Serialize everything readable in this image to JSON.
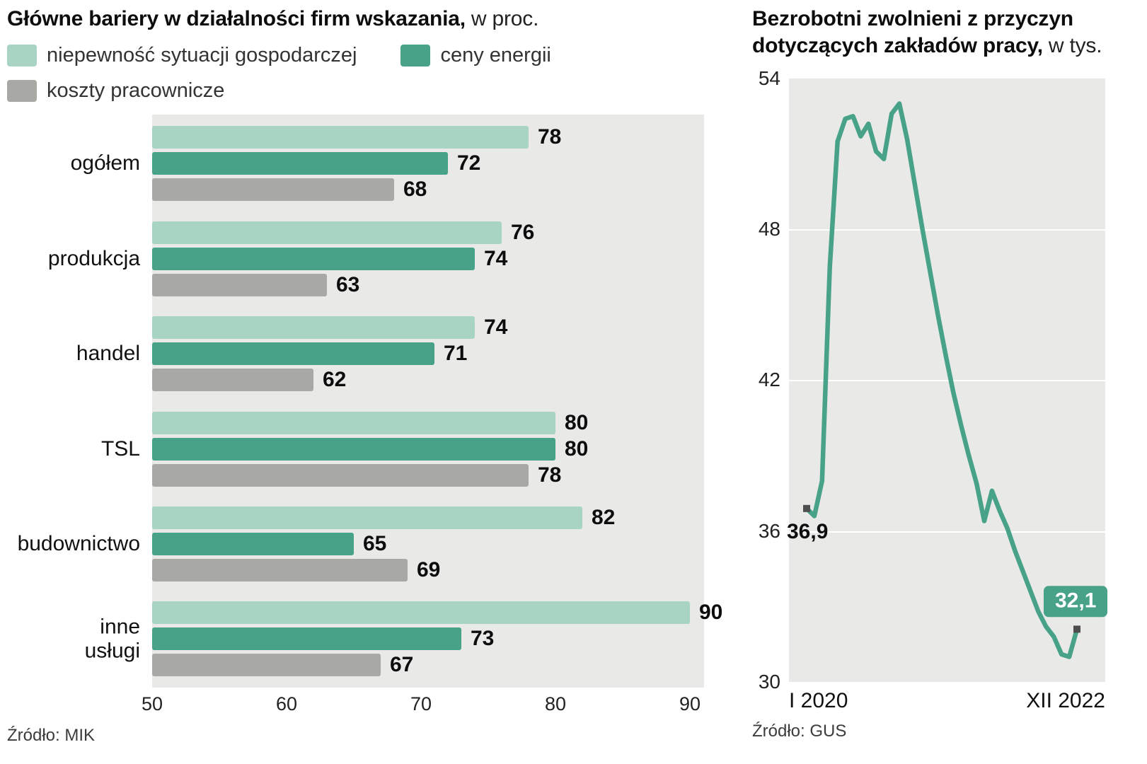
{
  "left_chart": {
    "title_bold": "Główne bariery w działalności firm wskazania,",
    "title_light": "w proc.",
    "source": "Źródło: MIK"
  },
  "right_chart": {
    "title_bold": "Bezrobotni zwolnieni z przyczyn dotyczących zakładów pracy,",
    "title_light": "w tys.",
    "x_label_left": "I 2020",
    "x_label_right": "XII 2022",
    "start_label": "36,9",
    "end_label": "32,1",
    "source": "Źródło: GUS"
  },
  "colors": {
    "light_teal": "#a7d4c3",
    "dark_teal": "#47a287",
    "gray_bar": "#a8a8a4",
    "plot_background": "#e9e9e7",
    "marker": "#4e4e4e"
  },
  "chart_data": [
    {
      "type": "bar",
      "orientation": "horizontal",
      "title": "Główne bariery w działalności firm wskazania, w proc.",
      "categories": [
        "ogółem",
        "produkcja",
        "handel",
        "TSL",
        "budownictwo",
        "inne\nusługi"
      ],
      "series": [
        {
          "name": "niepewność sytuacji gospodarczej",
          "color": "#a7d4c3",
          "values": [
            78,
            76,
            74,
            80,
            82,
            90
          ]
        },
        {
          "name": "ceny energii",
          "color": "#47a287",
          "values": [
            72,
            74,
            71,
            80,
            65,
            73
          ]
        },
        {
          "name": "koszty pracownicze",
          "color": "#a8a8a4",
          "values": [
            68,
            63,
            62,
            78,
            69,
            67
          ]
        }
      ],
      "xlim": [
        50,
        90
      ],
      "x_ticks": [
        50,
        60,
        70,
        80,
        90
      ],
      "plot_background": "#e9e9e7",
      "legend_position": "top",
      "grid": false,
      "source": "Źródło: MIK"
    },
    {
      "type": "line",
      "title": "Bezrobotni zwolnieni z przyczyn dotyczących zakładów pracy, w tys.",
      "color": "#47a287",
      "ylim": [
        30,
        54
      ],
      "y_ticks": [
        54,
        48,
        42,
        36,
        30
      ],
      "x_range_labels": [
        "I 2020",
        "XII 2022"
      ],
      "x_unit": "monthly",
      "values_monthly": [
        36.9,
        36.6,
        38.0,
        46.5,
        51.5,
        52.4,
        52.5,
        51.7,
        52.2,
        51.1,
        50.8,
        52.6,
        53.0,
        51.6,
        49.8,
        48.0,
        46.3,
        44.6,
        43.0,
        41.5,
        40.2,
        39.0,
        37.9,
        36.4,
        37.6,
        36.8,
        36.1,
        35.2,
        34.4,
        33.6,
        32.8,
        32.2,
        31.8,
        31.1,
        31.0,
        32.1
      ],
      "first_point_label": "36,9",
      "last_point_label": "32,1",
      "plot_background": "#e9e9e7",
      "grid": true,
      "source": "Źródło: GUS"
    }
  ]
}
